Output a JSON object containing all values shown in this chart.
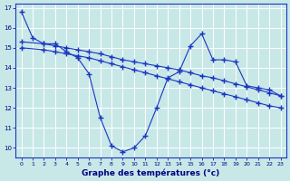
{
  "title": "Graphe des températures (°c)",
  "background_color": "#c8e8e8",
  "grid_color": "#aaaaaa",
  "line_color": "#1a35c0",
  "xlim": [
    -0.5,
    23.5
  ],
  "ylim": [
    9.5,
    17.2
  ],
  "x_ticks": [
    0,
    1,
    2,
    3,
    4,
    5,
    6,
    7,
    8,
    9,
    10,
    11,
    12,
    13,
    14,
    15,
    16,
    17,
    18,
    19,
    20,
    21,
    22,
    23
  ],
  "y_ticks": [
    10,
    11,
    12,
    13,
    14,
    15,
    16,
    17
  ],
  "series1_x": [
    0,
    1,
    2,
    3,
    4,
    5,
    6,
    7,
    8,
    9,
    10,
    11,
    12,
    13,
    14,
    15,
    16,
    17,
    18,
    19,
    20,
    21,
    22,
    23
  ],
  "series1_y": [
    16.8,
    15.5,
    15.2,
    15.2,
    14.8,
    14.5,
    13.7,
    11.5,
    10.1,
    9.8,
    10.0,
    10.6,
    12.0,
    13.5,
    13.8,
    15.1,
    15.7,
    14.4,
    14.4,
    14.3,
    13.1,
    13.0,
    12.9,
    12.6
  ],
  "series2_x": [
    0,
    2,
    3,
    4,
    5,
    6,
    7,
    8,
    9,
    10,
    11,
    12,
    13,
    14,
    15,
    16,
    17,
    18,
    19,
    20,
    21,
    22,
    23
  ],
  "series2_y": [
    15.3,
    15.2,
    15.1,
    15.0,
    14.9,
    14.8,
    14.7,
    14.55,
    14.4,
    14.3,
    14.2,
    14.1,
    14.0,
    13.9,
    13.75,
    13.6,
    13.5,
    13.35,
    13.2,
    13.05,
    12.9,
    12.75,
    12.6
  ],
  "series3_x": [
    0,
    2,
    3,
    4,
    5,
    6,
    7,
    8,
    9,
    10,
    11,
    12,
    13,
    14,
    15,
    16,
    17,
    18,
    19,
    20,
    21,
    22,
    23
  ],
  "series3_y": [
    15.0,
    14.9,
    14.8,
    14.7,
    14.6,
    14.5,
    14.35,
    14.2,
    14.05,
    13.9,
    13.75,
    13.6,
    13.45,
    13.3,
    13.15,
    13.0,
    12.85,
    12.7,
    12.55,
    12.4,
    12.25,
    12.1,
    12.0
  ]
}
